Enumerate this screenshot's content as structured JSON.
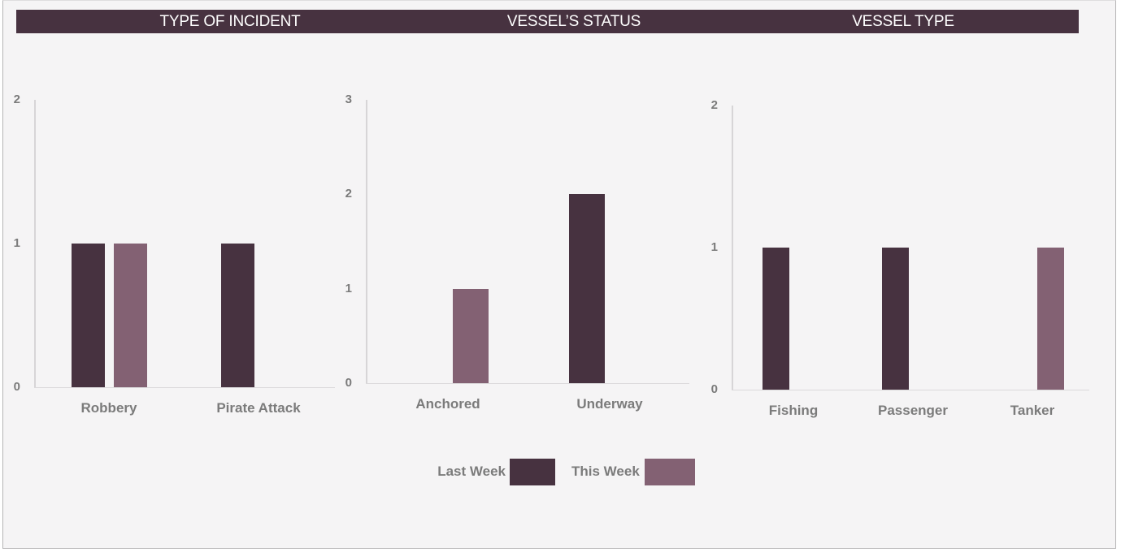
{
  "colors": {
    "background": "#F5F4F5",
    "frame_border": "#B5B4B5",
    "header_bar": "#473240",
    "series_last_week": "#473240",
    "series_this_week": "#836173",
    "label_text": "#7B7B7B",
    "axis_line": "#D7D5D7",
    "header_text": "#FFFFFF"
  },
  "legend": {
    "items": [
      {
        "label": "Last Week",
        "color": "#473240"
      },
      {
        "label": "This Week",
        "color": "#836173"
      }
    ],
    "position": "bottom-center"
  },
  "chart_data": [
    {
      "type": "bar",
      "title": "TYPE OF INCIDENT",
      "categories": [
        "Robbery",
        "Pirate Attack"
      ],
      "series": [
        {
          "name": "Last Week",
          "values": [
            1,
            1
          ]
        },
        {
          "name": "This Week",
          "values": [
            1,
            0
          ]
        }
      ],
      "xlabel": "",
      "ylabel": "",
      "ylim": [
        0,
        2
      ],
      "yticks": [
        0,
        1,
        2
      ],
      "grid": false,
      "legend_position": "shared-bottom"
    },
    {
      "type": "bar",
      "title": "VESSEL’S STATUS",
      "categories": [
        "Anchored",
        "Underway"
      ],
      "series": [
        {
          "name": "Last Week",
          "values": [
            0,
            2
          ]
        },
        {
          "name": "This Week",
          "values": [
            1,
            0
          ]
        }
      ],
      "xlabel": "",
      "ylabel": "",
      "ylim": [
        0,
        3
      ],
      "yticks": [
        0,
        1,
        2,
        3
      ],
      "grid": false,
      "legend_position": "shared-bottom"
    },
    {
      "type": "bar",
      "title": "VESSEL TYPE",
      "categories": [
        "Fishing",
        "Passenger",
        "Tanker"
      ],
      "series": [
        {
          "name": "Last Week",
          "values": [
            1,
            1,
            0
          ]
        },
        {
          "name": "This Week",
          "values": [
            0,
            0,
            1
          ]
        }
      ],
      "xlabel": "",
      "ylabel": "",
      "ylim": [
        0,
        2
      ],
      "yticks": [
        0,
        1,
        2
      ],
      "grid": false,
      "legend_position": "shared-bottom"
    }
  ]
}
